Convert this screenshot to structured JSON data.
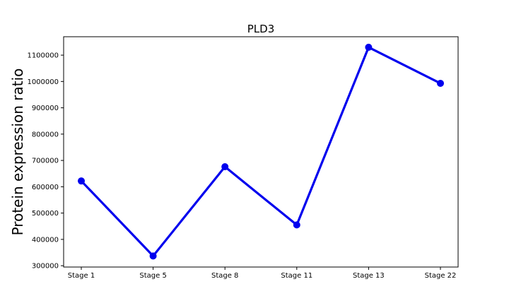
{
  "chart_data": {
    "type": "line",
    "title": "PLD3",
    "xlabel": "",
    "ylabel": "Protein expression ratio",
    "categories": [
      "Stage 1",
      "Stage 5",
      "Stage 8",
      "Stage 11",
      "Stage 13",
      "Stage 22"
    ],
    "series": [
      {
        "values": [
          622000,
          337000,
          676000,
          455000,
          1130000,
          993000
        ],
        "color": "#0000ee"
      }
    ],
    "ylim": [
      295000,
      1170000
    ],
    "yticks": [
      300000,
      400000,
      500000,
      600000,
      700000,
      800000,
      900000,
      1000000,
      1100000
    ],
    "grid": false,
    "legend": "none"
  }
}
